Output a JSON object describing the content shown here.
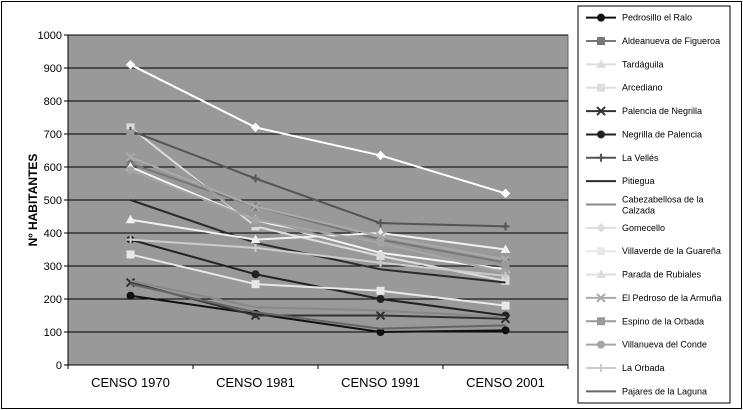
{
  "chart_data": {
    "type": "line",
    "title": "",
    "xlabel": "",
    "ylabel": "Nº HABITANTES",
    "ylim": [
      0,
      1000
    ],
    "yticks": [
      0,
      100,
      200,
      300,
      400,
      500,
      600,
      700,
      800,
      900,
      1000
    ],
    "categories": [
      "CENSO 1970",
      "CENSO 1981",
      "CENSO 1991",
      "CENSO 2001"
    ],
    "grid": true,
    "legend": "right",
    "plot_background": "#999999",
    "series": [
      {
        "name": "Pedrosillo el Ralo",
        "color": "#111111",
        "marker": "circle",
        "values": [
          210,
          155,
          100,
          105
        ]
      },
      {
        "name": "Aldeanueva de Figueroa",
        "color": "#777777",
        "marker": "square",
        "values": [
          610,
          480,
          380,
          310
        ]
      },
      {
        "name": "Tardáguila",
        "color": "#f5f5f5",
        "marker": "triangle",
        "values": [
          600,
          440,
          340,
          290
        ]
      },
      {
        "name": "Arcediano",
        "color": "#dddddd",
        "marker": "square",
        "values": [
          720,
          420,
          330,
          255
        ]
      },
      {
        "name": "Palencia de Negrilla",
        "color": "#333333",
        "marker": "x",
        "values": [
          250,
          150,
          150,
          140
        ]
      },
      {
        "name": "Negrilla de Palencia",
        "color": "#222222",
        "marker": "circle",
        "values": [
          380,
          275,
          200,
          150
        ]
      },
      {
        "name": "La Vellés",
        "color": "#555555",
        "marker": "plus",
        "values": [
          710,
          565,
          430,
          420
        ]
      },
      {
        "name": "Pitiegua",
        "color": "#2b2b2b",
        "marker": "none",
        "values": [
          500,
          370,
          290,
          250
        ]
      },
      {
        "name": "Cabezabellosa de la Calzada",
        "color": "#888888",
        "marker": "none",
        "values": [
          255,
          175,
          165,
          145
        ]
      },
      {
        "name": "Gomecello",
        "color": "#ffffff",
        "marker": "diamond",
        "values": [
          910,
          720,
          635,
          520
        ]
      },
      {
        "name": "Villaverde de la Guareña",
        "color": "#e8e8e8",
        "marker": "square",
        "values": [
          335,
          245,
          225,
          180
        ]
      },
      {
        "name": "Parada de Rubiales",
        "color": "#f0f0f0",
        "marker": "triangle",
        "values": [
          440,
          380,
          400,
          350
        ]
      },
      {
        "name": "El Pedroso de la Armuña",
        "color": "#aaaaaa",
        "marker": "x",
        "values": [
          630,
          480,
          390,
          320
        ]
      },
      {
        "name": "Espino de la Orbada",
        "color": "#9a9a9a",
        "marker": "square",
        "values": [
          700,
          430,
          360,
          300
        ]
      },
      {
        "name": "Villanueva del Conde",
        "color": "#a5a5a5",
        "marker": "circle",
        "values": [
          590,
          440,
          370,
          280
        ]
      },
      {
        "name": "La Orbada",
        "color": "#cccccc",
        "marker": "plus",
        "values": [
          380,
          355,
          310,
          270
        ]
      },
      {
        "name": "Pajares de la Laguna",
        "color": "#666666",
        "marker": "none",
        "values": [
          245,
          160,
          110,
          120
        ]
      }
    ]
  }
}
